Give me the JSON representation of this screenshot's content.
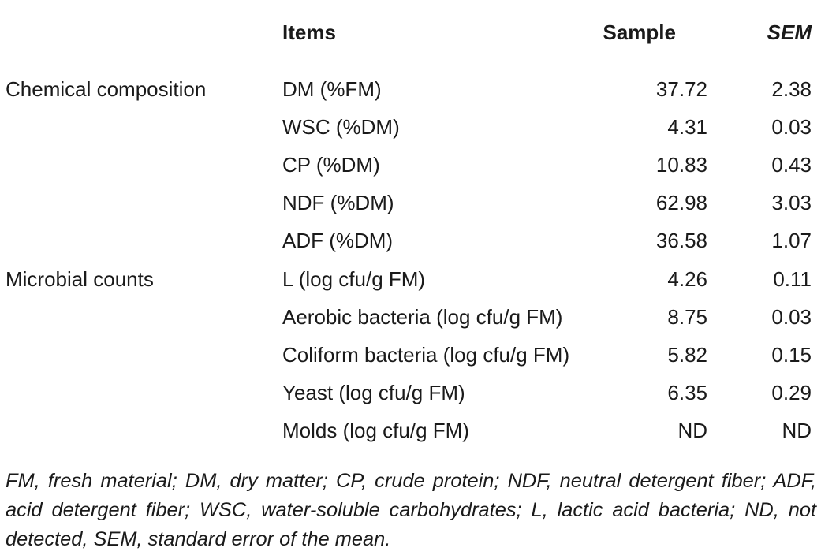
{
  "table": {
    "headers": {
      "group": "",
      "items": "Items",
      "sample": "Sample",
      "sem": "SEM"
    },
    "rows": [
      {
        "group": "Chemical composition",
        "item": "DM (%FM)",
        "sample": "37.72",
        "sem": "2.38"
      },
      {
        "group": "",
        "item": "WSC (%DM)",
        "sample": "4.31",
        "sem": "0.03"
      },
      {
        "group": "",
        "item": "CP (%DM)",
        "sample": "10.83",
        "sem": "0.43"
      },
      {
        "group": "",
        "item": "NDF (%DM)",
        "sample": "62.98",
        "sem": "3.03"
      },
      {
        "group": "",
        "item": "ADF (%DM)",
        "sample": "36.58",
        "sem": "1.07"
      },
      {
        "group": "Microbial counts",
        "item": "L (log cfu/g FM)",
        "sample": "4.26",
        "sem": "0.11"
      },
      {
        "group": "",
        "item": "Aerobic bacteria (log cfu/g FM)",
        "sample": "8.75",
        "sem": "0.03"
      },
      {
        "group": "",
        "item": "Coliform bacteria (log cfu/g FM)",
        "sample": "5.82",
        "sem": "0.15"
      },
      {
        "group": "",
        "item": "Yeast (log cfu/g FM)",
        "sample": "6.35",
        "sem": "0.29"
      },
      {
        "group": "",
        "item": "Molds (log cfu/g FM)",
        "sample": "ND",
        "sem": "ND"
      }
    ]
  },
  "footnote": "FM, fresh material; DM, dry matter; CP, crude protein; NDF, neutral detergent fiber; ADF, acid detergent fiber; WSC, water-soluble carbohydrates; L, lactic acid bacteria; ND, not detected, SEM, standard error of the mean."
}
